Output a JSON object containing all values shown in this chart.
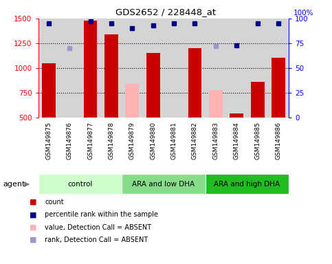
{
  "title": "GDS2652 / 228448_at",
  "samples": [
    "GSM149875",
    "GSM149876",
    "GSM149877",
    "GSM149878",
    "GSM149879",
    "GSM149880",
    "GSM149881",
    "GSM149882",
    "GSM149883",
    "GSM149884",
    "GSM149885",
    "GSM149886"
  ],
  "bar_values": [
    1050,
    null,
    1480,
    1340,
    null,
    1150,
    null,
    1200,
    null,
    null,
    860,
    1100
  ],
  "bar_absent": [
    null,
    null,
    null,
    null,
    840,
    null,
    null,
    null,
    780,
    null,
    null,
    null
  ],
  "small_vals": [
    null,
    null,
    null,
    null,
    null,
    null,
    null,
    null,
    null,
    540,
    null,
    null
  ],
  "bar_color_present": "#cc0000",
  "bar_color_absent": "#ffb3b3",
  "rank_present": [
    95,
    null,
    97,
    95,
    90,
    93,
    95,
    95,
    null,
    73,
    95,
    95
  ],
  "rank_absent": [
    null,
    70,
    null,
    null,
    null,
    null,
    null,
    null,
    72,
    null,
    null,
    null
  ],
  "rank_color_present": "#00008b",
  "rank_color_absent": "#9999cc",
  "ylim_left": [
    500,
    1500
  ],
  "ylim_right": [
    0,
    100
  ],
  "yticks_left": [
    500,
    750,
    1000,
    1250,
    1500
  ],
  "yticks_right": [
    0,
    25,
    50,
    75,
    100
  ],
  "hlines": [
    750,
    1000,
    1250
  ],
  "group_colors": [
    "#ccffcc",
    "#88dd88",
    "#22bb22"
  ],
  "group_labels": [
    "control",
    "ARA and low DHA",
    "ARA and high DHA"
  ],
  "group_ranges": [
    [
      0,
      4
    ],
    [
      4,
      8
    ],
    [
      8,
      12
    ]
  ],
  "plot_bg": "#d4d4d4",
  "label_bg": "#d4d4d4",
  "bg_color": "#ffffff",
  "agent_label": "agent",
  "legend": [
    {
      "label": "count",
      "color": "#cc0000"
    },
    {
      "label": "percentile rank within the sample",
      "color": "#00008b"
    },
    {
      "label": "value, Detection Call = ABSENT",
      "color": "#ffb3b3"
    },
    {
      "label": "rank, Detection Call = ABSENT",
      "color": "#9999cc"
    }
  ]
}
